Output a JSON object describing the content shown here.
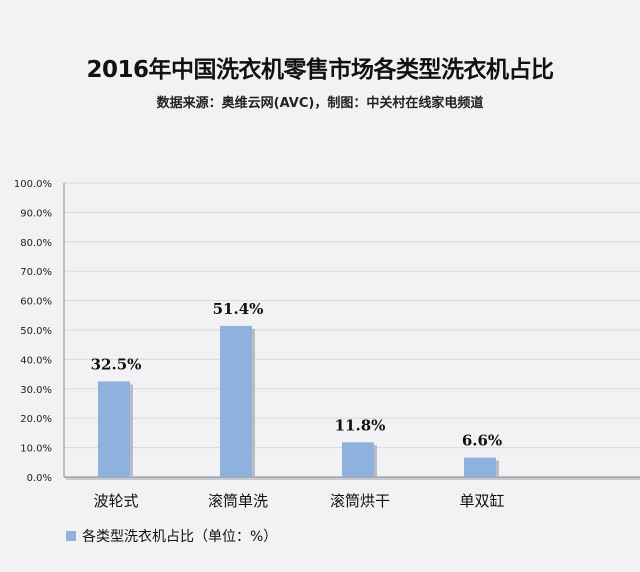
{
  "chart_data": {
    "type": "bar",
    "title": "2016年中国洗衣机零售市场各类型洗衣机占比",
    "subtitle": "数据来源：奥维云网(AVC)，制图：中关村在线家电频道",
    "categories": [
      "波轮式",
      "滚筒单洗",
      "滚筒烘干",
      "单双缸"
    ],
    "series": [
      {
        "name": "各类型洗衣机占比（单位：%）",
        "values": [
          32.5,
          51.4,
          11.8,
          6.6
        ]
      }
    ],
    "data_labels": [
      "32.5%",
      "51.4%",
      "11.8%",
      "6.6%"
    ],
    "ylim": [
      0,
      100
    ],
    "yticks": [
      "0.0%",
      "10.0%",
      "20.0%",
      "30.0%",
      "40.0%",
      "50.0%",
      "60.0%",
      "70.0%",
      "80.0%",
      "90.0%",
      "100.0%"
    ],
    "grid": true,
    "legend_position": "bottom-left",
    "bar_color": "#8eb1de",
    "bar_shadow_color": "#b8bcc4"
  }
}
